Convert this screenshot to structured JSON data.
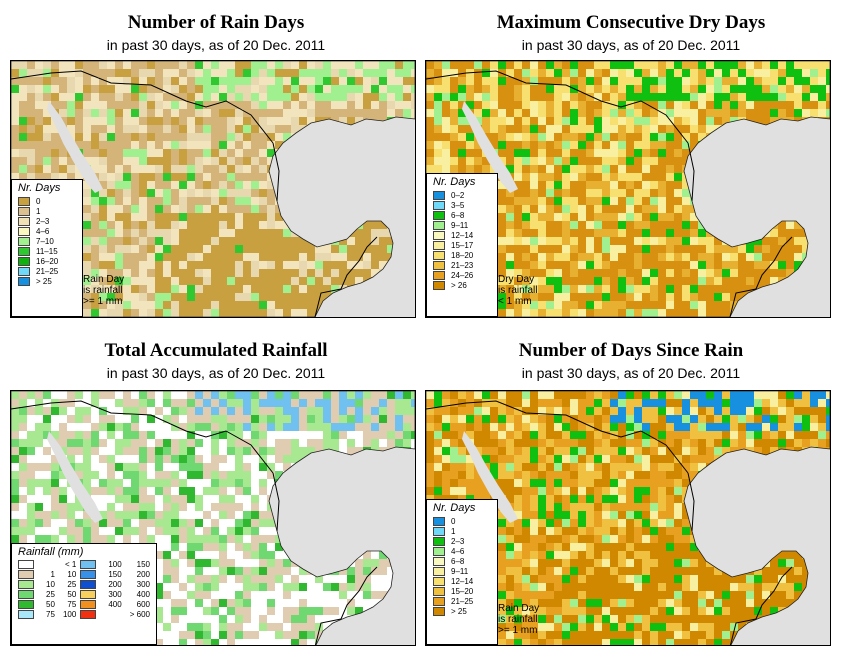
{
  "colors": {
    "ocean": "#e0e0e0",
    "land": "#e8dcc4",
    "border": "#000000"
  },
  "panels": [
    {
      "id": "rain-days",
      "title": "Number of Rain Days",
      "subtitle": "in past 30 days, as of  20 Dec. 2011",
      "legend_title": "Nr. Days",
      "legend": [
        {
          "label": "0",
          "color": "#c8a040"
        },
        {
          "label": "1",
          "color": "#dcc090"
        },
        {
          "label": "2–3",
          "color": "#f0e2b4"
        },
        {
          "label": "4–6",
          "color": "#f8f8c0"
        },
        {
          "label": "7–10",
          "color": "#a0f090"
        },
        {
          "label": "11–15",
          "color": "#30c830"
        },
        {
          "label": "16–20",
          "color": "#10b010"
        },
        {
          "label": "21–25",
          "color": "#70d8f8"
        },
        {
          "label": "> 25",
          "color": "#1890e0"
        }
      ],
      "note": [
        "Rain Day",
        "is rainfall",
        ">= 1 mm"
      ]
    },
    {
      "id": "dry-days",
      "title": "Maximum Consecutive Dry Days",
      "subtitle": "in past 30 days, as of  20 Dec. 2011",
      "legend_title": "Nr. Days",
      "legend": [
        {
          "label": "0–2",
          "color": "#1890e0"
        },
        {
          "label": "3–5",
          "color": "#70d8f8"
        },
        {
          "label": "6–8",
          "color": "#10c010"
        },
        {
          "label": "9–11",
          "color": "#a0f090"
        },
        {
          "label": "12–14",
          "color": "#f8f8c0"
        },
        {
          "label": "15–17",
          "color": "#f8f0a0"
        },
        {
          "label": "18–20",
          "color": "#f8e070"
        },
        {
          "label": "21–23",
          "color": "#f0c040"
        },
        {
          "label": "24–26",
          "color": "#e8a020"
        },
        {
          "label": "> 26",
          "color": "#d08800"
        }
      ],
      "note": [
        "Dry Day",
        "is rainfall",
        "< 1 mm"
      ]
    },
    {
      "id": "total-rainfall",
      "title": "Total Accumulated Rainfall",
      "subtitle": "in past 30 days, as of  20 Dec. 2011",
      "legend_title": "Rainfall (mm)",
      "legend_left": [
        {
          "lo": "",
          "hi": "< 1",
          "color": "#ffffff"
        },
        {
          "lo": "1",
          "hi": "10",
          "color": "#e0ccb0"
        },
        {
          "lo": "10",
          "hi": "25",
          "color": "#a8e890"
        },
        {
          "lo": "25",
          "hi": "50",
          "color": "#70d870"
        },
        {
          "lo": "50",
          "hi": "75",
          "color": "#30b830"
        },
        {
          "lo": "75",
          "hi": "100",
          "color": "#a8e8f8"
        }
      ],
      "legend_right": [
        {
          "lo": "100",
          "hi": "150",
          "color": "#70c0f0"
        },
        {
          "lo": "150",
          "hi": "200",
          "color": "#3890e8"
        },
        {
          "lo": "200",
          "hi": "300",
          "color": "#1050d0"
        },
        {
          "lo": "300",
          "hi": "400",
          "color": "#f8d060"
        },
        {
          "lo": "400",
          "hi": "600",
          "color": "#f09020"
        },
        {
          "lo": "",
          "hi": "> 600",
          "color": "#f03010"
        }
      ]
    },
    {
      "id": "days-since-rain",
      "title": "Number of Days Since Rain",
      "subtitle": "in past 30 days, as of  20 Dec. 2011",
      "legend_title": "Nr. Days",
      "legend": [
        {
          "label": "0",
          "color": "#1890e0"
        },
        {
          "label": "1",
          "color": "#70d8f8"
        },
        {
          "label": "2–3",
          "color": "#10c010"
        },
        {
          "label": "4–6",
          "color": "#a0f090"
        },
        {
          "label": "6–8",
          "color": "#f8f8c0"
        },
        {
          "label": "9–11",
          "color": "#f8f0a0"
        },
        {
          "label": "12–14",
          "color": "#f8e070"
        },
        {
          "label": "15–20",
          "color": "#f0c040"
        },
        {
          "label": "21–25",
          "color": "#e8a020"
        },
        {
          "label": "> 25",
          "color": "#d08800"
        }
      ],
      "note": [
        "Rain Day",
        "is rainfall",
        ">= 1 mm"
      ]
    }
  ]
}
